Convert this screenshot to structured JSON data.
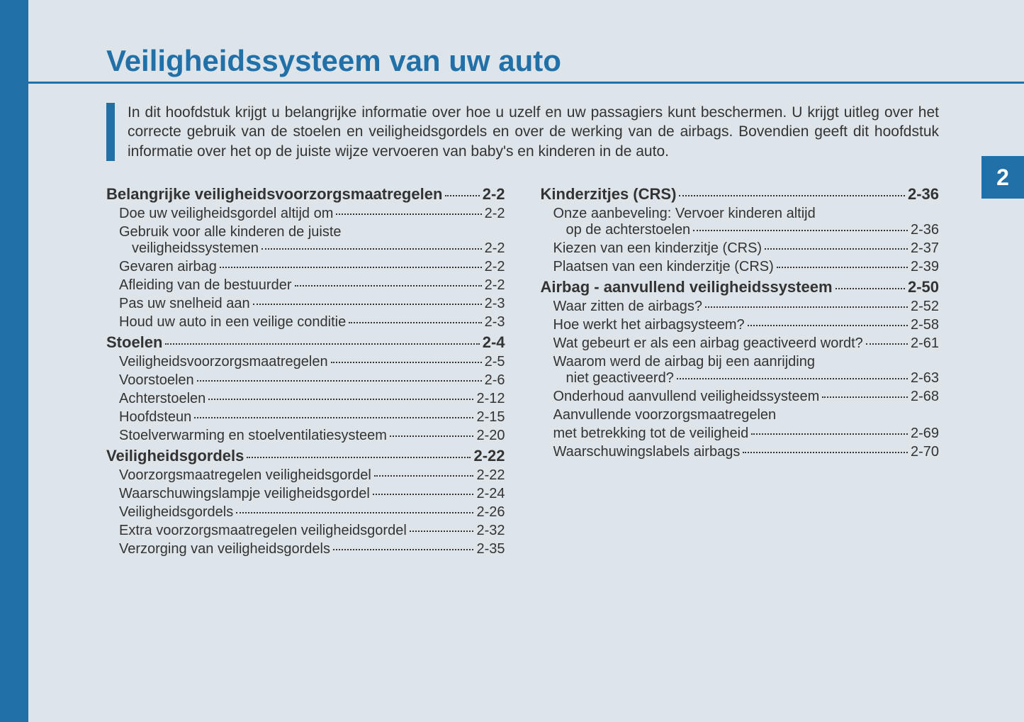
{
  "colors": {
    "accent": "#2270a8",
    "page_bg": "#dde4ea",
    "text": "#333333"
  },
  "chapter_number": "2",
  "chapter_title": "Veiligheidssysteem van uw auto",
  "intro_text": "In dit hoofdstuk krijgt u belangrijke informatie over hoe u uzelf en uw passagiers kunt beschermen. U krijgt uitleg over het correcte gebruik van de stoelen en veiligheidsgordels en over de werking van de airbags. Bovendien geeft dit hoofdstuk informatie over het op de juiste wijze vervoeren van baby's en kinderen in de auto.",
  "left_column": [
    {
      "type": "section",
      "label": "Belangrijke veiligheidsvoorzorgsmaatregelen",
      "page": "2-2"
    },
    {
      "type": "sub",
      "label": "Doe uw veiligheidsgordel altijd om",
      "page": "2-2"
    },
    {
      "type": "sub",
      "label": "Gebruik voor alle kinderen de juiste"
    },
    {
      "type": "cont",
      "label": "veiligheidssystemen",
      "page": "2-2"
    },
    {
      "type": "sub",
      "label": "Gevaren airbag",
      "page": "2-2"
    },
    {
      "type": "sub",
      "label": "Afleiding van de bestuurder",
      "page": "2-2"
    },
    {
      "type": "sub",
      "label": "Pas uw snelheid aan",
      "page": "2-3"
    },
    {
      "type": "sub",
      "label": "Houd uw auto in een veilige conditie",
      "page": "2-3"
    },
    {
      "type": "section",
      "label": "Stoelen",
      "page": "2-4"
    },
    {
      "type": "sub",
      "label": "Veiligheidsvoorzorgsmaatregelen",
      "page": "2-5"
    },
    {
      "type": "sub",
      "label": "Voorstoelen",
      "page": "2-6"
    },
    {
      "type": "sub",
      "label": "Achterstoelen",
      "page": "2-12"
    },
    {
      "type": "sub",
      "label": "Hoofdsteun",
      "page": "2-15"
    },
    {
      "type": "sub",
      "label": "Stoelverwarming en stoelventilatiesysteem",
      "page": "2-20"
    },
    {
      "type": "section",
      "label": "Veiligheidsgordels",
      "page": "2-22"
    },
    {
      "type": "sub",
      "label": "Voorzorgsmaatregelen veiligheidsgordel",
      "page": "2-22"
    },
    {
      "type": "sub",
      "label": "Waarschuwingslampje veiligheidsgordel",
      "page": "2-24"
    },
    {
      "type": "sub",
      "label": "Veiligheidsgordels",
      "page": "2-26"
    },
    {
      "type": "sub",
      "label": "Extra voorzorgsmaatregelen veiligheidsgordel",
      "page": "2-32"
    },
    {
      "type": "sub",
      "label": "Verzorging van veiligheidsgordels",
      "page": "2-35"
    }
  ],
  "right_column": [
    {
      "type": "section",
      "label": "Kinderzitjes (CRS)",
      "page": "2-36"
    },
    {
      "type": "sub",
      "label": "Onze aanbeveling: Vervoer kinderen altijd"
    },
    {
      "type": "cont",
      "label": "op de achterstoelen",
      "page": "2-36"
    },
    {
      "type": "sub",
      "label": "Kiezen van een kinderzitje (CRS)",
      "page": "2-37"
    },
    {
      "type": "sub",
      "label": "Plaatsen van een kinderzitje (CRS)",
      "page": "2-39"
    },
    {
      "type": "section",
      "label": "Airbag - aanvullend veiligheidssysteem",
      "page": "2-50"
    },
    {
      "type": "sub",
      "label": "Waar zitten de airbags?",
      "page": "2-52"
    },
    {
      "type": "sub",
      "label": "Hoe werkt het airbagsysteem?",
      "page": "2-58"
    },
    {
      "type": "sub",
      "label": "Wat gebeurt er als een airbag geactiveerd wordt?",
      "page": "2-61"
    },
    {
      "type": "sub",
      "label": "Waarom werd de airbag bij een aanrijding"
    },
    {
      "type": "cont",
      "label": "niet geactiveerd?",
      "page": "2-63"
    },
    {
      "type": "sub",
      "label": "Onderhoud aanvullend veiligheidssysteem",
      "page": "2-68"
    },
    {
      "type": "sub",
      "label": "Aanvullende voorzorgsmaatregelen"
    },
    {
      "type": "sub",
      "label": "met betrekking tot de veiligheid",
      "page": "2-69"
    },
    {
      "type": "sub",
      "label": "Waarschuwingslabels airbags",
      "page": "2-70"
    }
  ]
}
